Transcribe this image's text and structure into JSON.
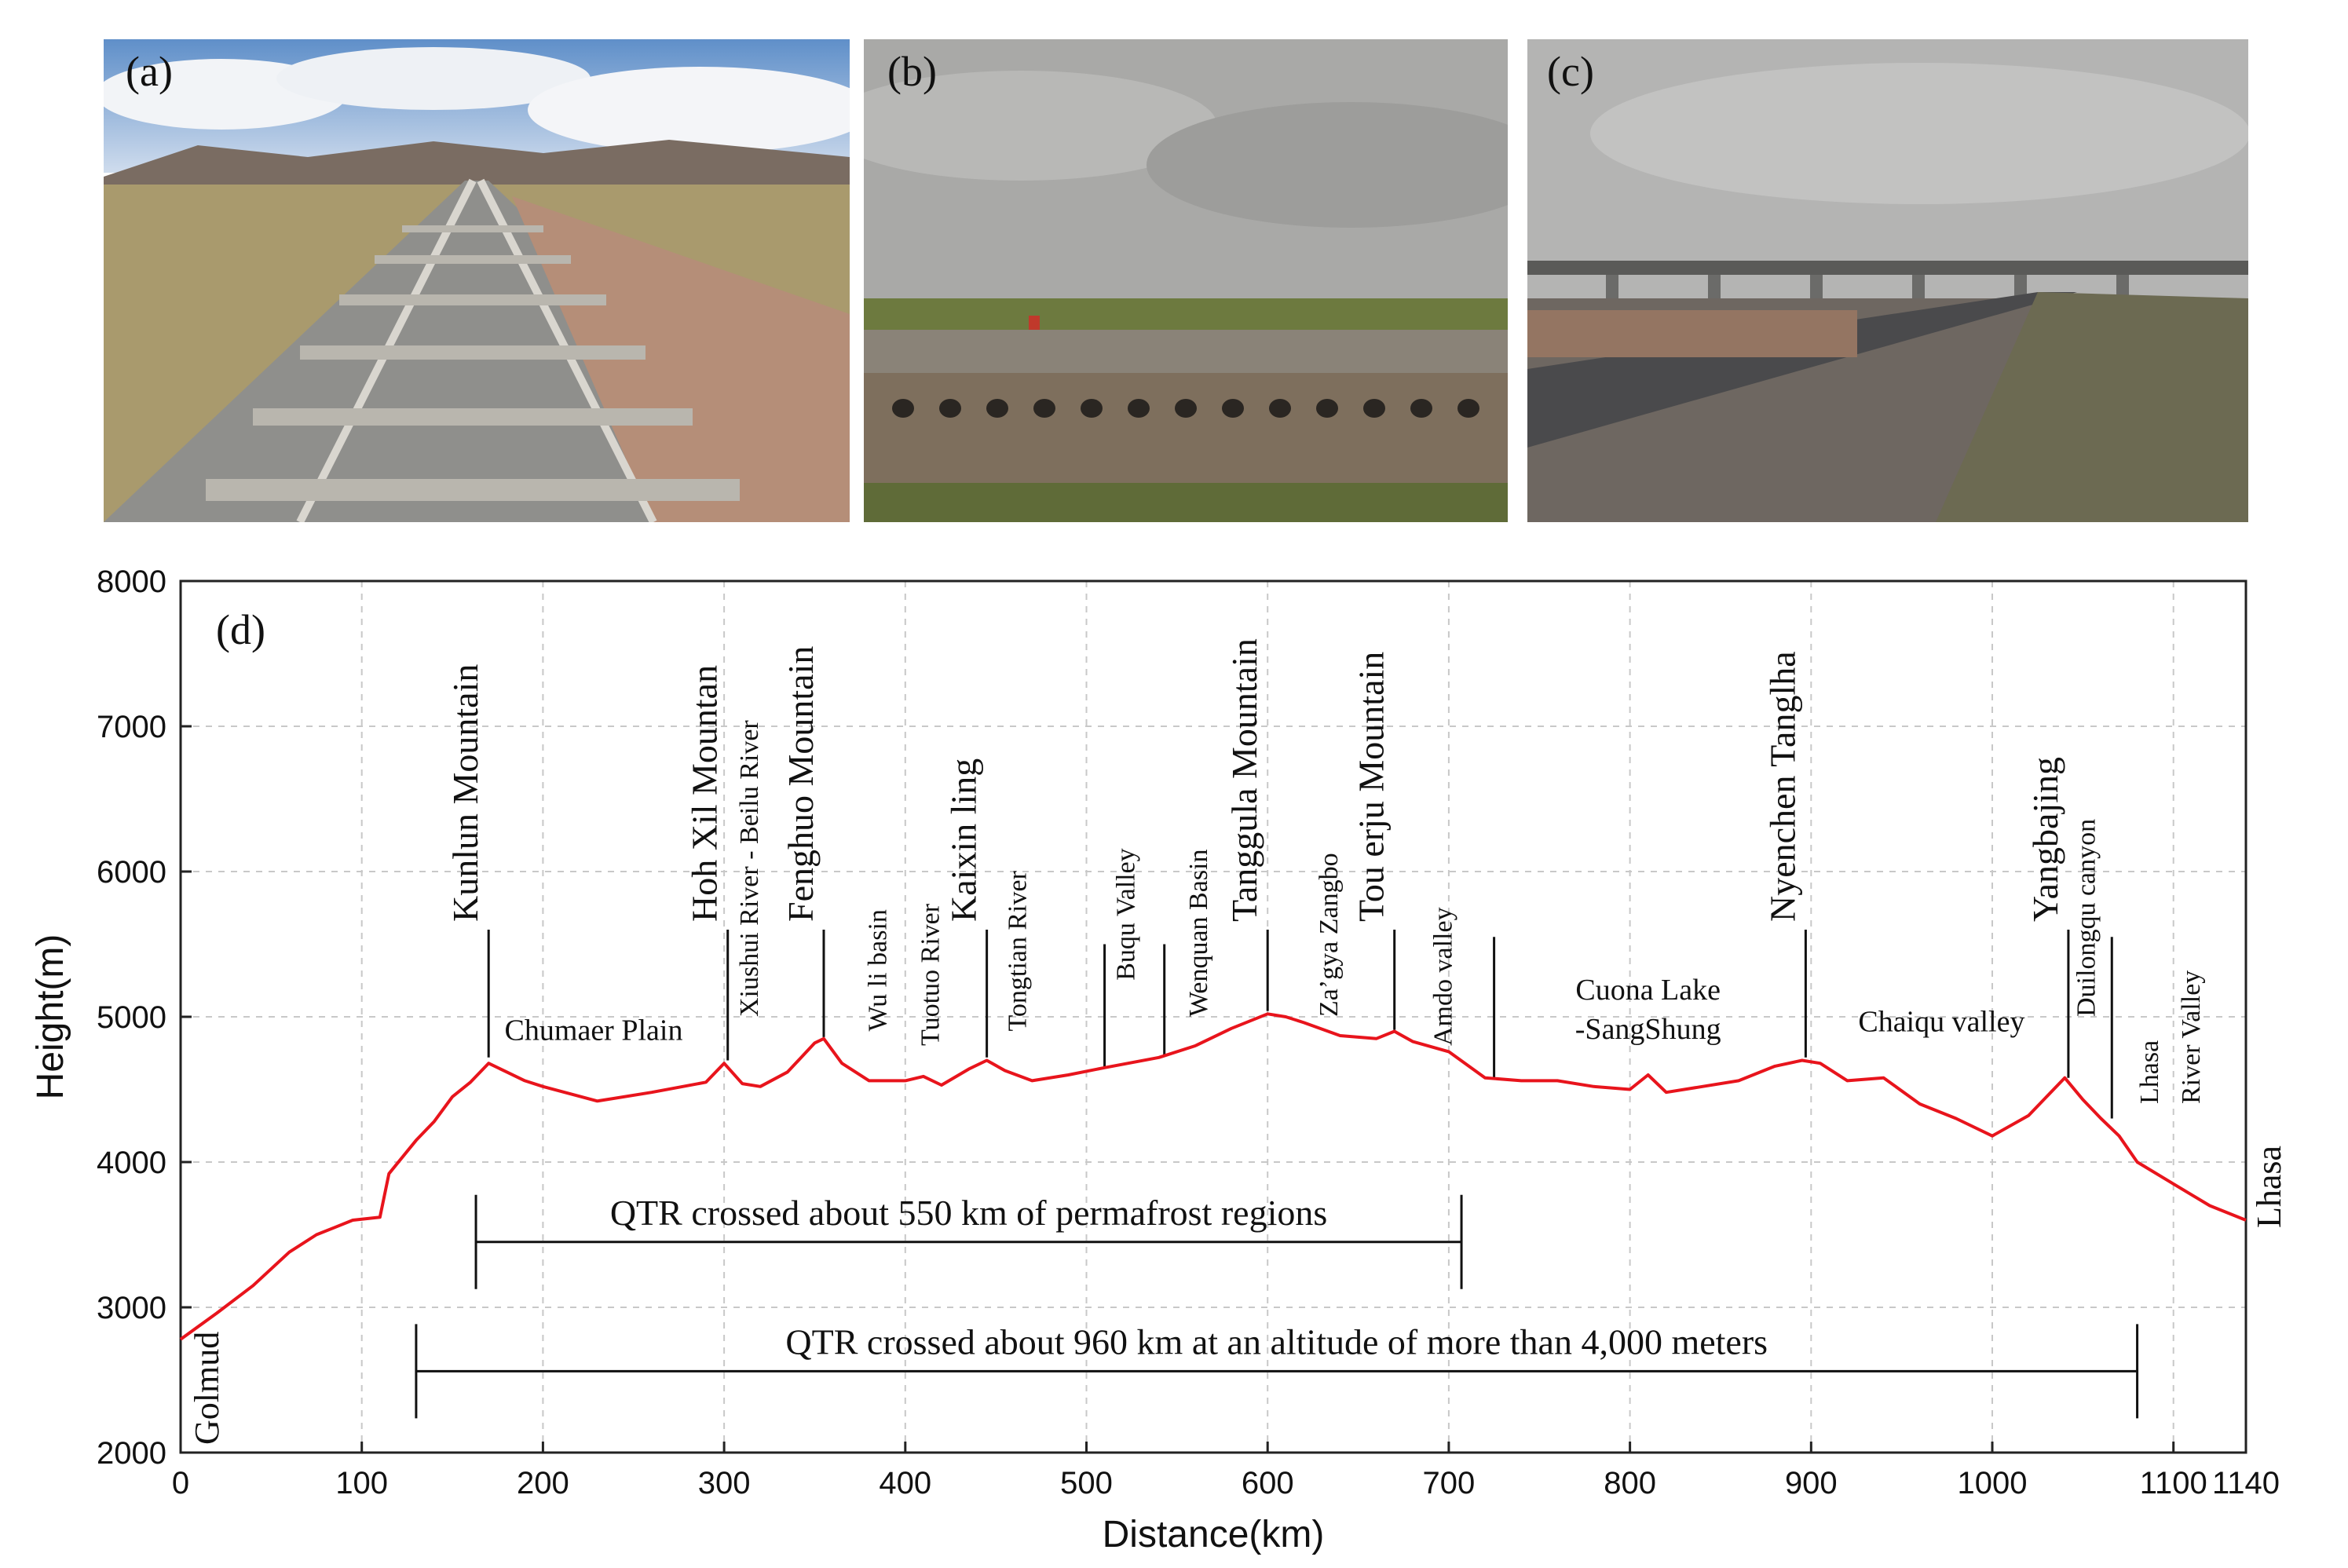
{
  "photos": [
    {
      "label": "(a)",
      "subject": "railway-track"
    },
    {
      "label": "(b)",
      "subject": "embankment-ducts"
    },
    {
      "label": "(c)",
      "subject": "viaduct-road"
    }
  ],
  "chart_data": {
    "type": "line",
    "panel_label": "(d)",
    "xlabel": "Distance(km)",
    "ylabel": "Height(m)",
    "xlim": [
      0,
      1140
    ],
    "ylim": [
      2000,
      8000
    ],
    "x_ticks": [
      0,
      100,
      200,
      300,
      400,
      500,
      600,
      700,
      800,
      900,
      1000,
      1100,
      1140
    ],
    "y_ticks": [
      2000,
      3000,
      4000,
      5000,
      6000,
      7000,
      8000
    ],
    "grid": true,
    "line_color": "#e8141c",
    "series": [
      {
        "x": [
          0,
          20,
          40,
          60,
          75,
          85,
          95,
          110,
          115,
          130,
          140,
          150,
          160,
          170,
          180,
          190,
          200,
          230,
          260,
          290,
          300,
          310,
          320,
          335,
          350,
          355,
          365,
          380,
          400,
          410,
          420,
          435,
          445,
          455,
          470,
          490,
          510,
          540,
          560,
          580,
          600,
          610,
          620,
          640,
          660,
          670,
          680,
          700,
          720,
          740,
          760,
          780,
          800,
          810,
          820,
          840,
          860,
          880,
          895,
          905,
          920,
          940,
          960,
          980,
          1000,
          1020,
          1030,
          1040,
          1050,
          1060,
          1070,
          1080,
          1100,
          1120,
          1140
        ],
        "y": [
          2780,
          2960,
          3150,
          3380,
          3500,
          3550,
          3600,
          3620,
          3920,
          4150,
          4280,
          4450,
          4550,
          4680,
          4620,
          4560,
          4520,
          4420,
          4480,
          4550,
          4680,
          4540,
          4520,
          4620,
          4820,
          4850,
          4680,
          4560,
          4560,
          4590,
          4530,
          4640,
          4700,
          4630,
          4560,
          4600,
          4650,
          4720,
          4800,
          4920,
          5020,
          5000,
          4960,
          4870,
          4850,
          4900,
          4830,
          4760,
          4580,
          4560,
          4560,
          4520,
          4500,
          4600,
          4480,
          4520,
          4560,
          4660,
          4700,
          4680,
          4560,
          4580,
          4400,
          4300,
          4180,
          4320,
          4450,
          4580,
          4430,
          4300,
          4180,
          4000,
          3850,
          3700,
          3600
        ]
      }
    ],
    "ends": [
      {
        "text": "Golmud",
        "x": 0
      },
      {
        "text": "Lhasa",
        "x": 1140
      }
    ],
    "features": [
      {
        "text": "Kunlun Mountain",
        "x": 170,
        "top": 5600,
        "bottom": 4720,
        "size": "large"
      },
      {
        "text": "Hoh Xil Mountan",
        "x": 302,
        "top": 5600,
        "bottom": 4700,
        "size": "large"
      },
      {
        "text": "Xiushui River - Beilu River",
        "x": 322,
        "top": 5000,
        "size": "medium"
      },
      {
        "text": "Fenghuo Mountain",
        "x": 355,
        "top": 5600,
        "bottom": 4860,
        "size": "large"
      },
      {
        "text": "Wu li basin",
        "x": 393,
        "top": 4900,
        "size": "medium"
      },
      {
        "text": "Tuotuo River",
        "x": 422,
        "top": 4800,
        "size": "medium"
      },
      {
        "text": "Kaixin ling",
        "x": 445,
        "top": 5600,
        "bottom": 4720,
        "size": "large"
      },
      {
        "text": "Tongtian River",
        "x": 470,
        "top": 4900,
        "size": "medium"
      },
      {
        "text": "Buqu Valley",
        "x": 530,
        "top": 5250,
        "size": "medium"
      },
      {
        "text": "Wenquan Basin",
        "x": 570,
        "top": 5000,
        "size": "medium"
      },
      {
        "text": "Tanggula Mountain",
        "x": 600,
        "top": 5600,
        "bottom": 5040,
        "size": "large"
      },
      {
        "text": "Za’gya Zangbo",
        "x": 642,
        "top": 5000,
        "size": "medium"
      },
      {
        "text": "Tou erju Mountain",
        "x": 670,
        "top": 5600,
        "bottom": 4910,
        "size": "large"
      },
      {
        "text": "Amdo valley",
        "x": 705,
        "top": 4800,
        "size": "medium"
      },
      {
        "text": "Nyenchen Tanglha",
        "x": 897,
        "top": 5600,
        "bottom": 4720,
        "size": "large"
      },
      {
        "text": "Yangbajing",
        "x": 1042,
        "top": 5600,
        "bottom": 4580,
        "size": "large"
      },
      {
        "text": "Duilongqu canyon",
        "x": 1060,
        "top": 5000,
        "size": "medium"
      },
      {
        "text": "Lhasa",
        "x": 1095,
        "top": 4400,
        "size": "medium"
      },
      {
        "text": "River Valley",
        "x": 1118,
        "top": 4400,
        "size": "medium"
      }
    ],
    "boundary_lines": [
      {
        "x": 510,
        "top": 5500,
        "bottom": 4650
      },
      {
        "x": 543,
        "top": 5500,
        "bottom": 4730
      },
      {
        "x": 725,
        "top": 5550,
        "bottom": 4580
      },
      {
        "x": 1066,
        "top": 5550,
        "bottom": 4300
      }
    ],
    "region_labels": [
      {
        "text": "Chumaer Plain",
        "x": 228,
        "y": 4840
      },
      {
        "text": "Cuona Lake",
        "x": 810,
        "y": 5120
      },
      {
        "text": "-SangShung",
        "x": 810,
        "y": 4850
      },
      {
        "text": "Chaiqu valley",
        "x": 972,
        "y": 4900
      }
    ],
    "spans": [
      {
        "text": "QTR crossed about 550 km of permafrost regions",
        "x1": 163,
        "x2": 707,
        "y": 3450
      },
      {
        "text": "QTR crossed about 960 km at an altitude of more than 4,000 meters",
        "x1": 130,
        "x2": 1080,
        "y": 2560
      }
    ]
  }
}
